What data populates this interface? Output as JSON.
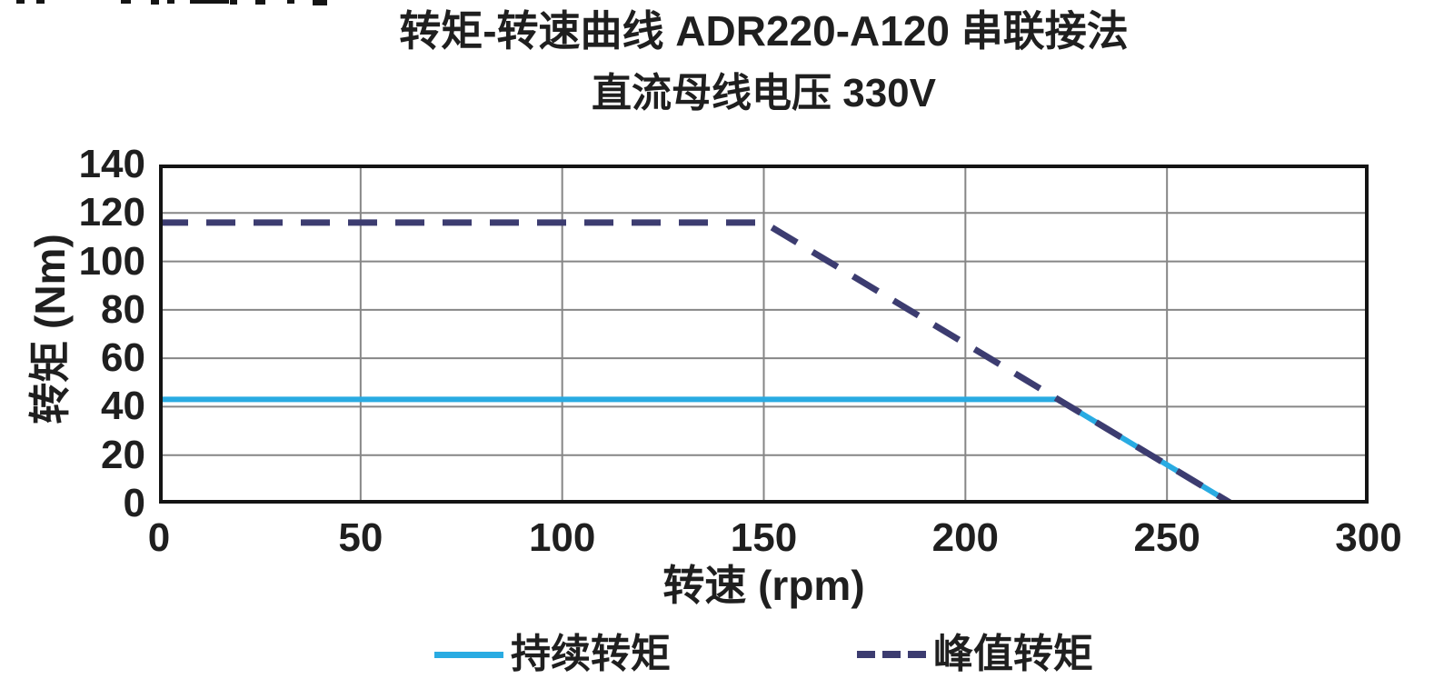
{
  "chart_data": {
    "type": "line",
    "title": "转矩-转速曲线 ADR220-A120 串联接法",
    "subtitle": "直流母线电压 330V",
    "xlabel": "转速 (rpm)",
    "ylabel": "转矩 (Nm)",
    "xlim": [
      0,
      300
    ],
    "ylim": [
      0,
      140
    ],
    "x_ticks": [
      0,
      50,
      100,
      150,
      200,
      250,
      300
    ],
    "y_ticks": [
      0,
      20,
      40,
      60,
      80,
      100,
      120,
      140
    ],
    "grid": true,
    "grid_color": "#868686",
    "axis_border_color": "#141414",
    "legend_position": "bottom",
    "series": [
      {
        "name": "持续转矩",
        "style": "solid",
        "color": "#29ABE2",
        "stroke_width": 6,
        "points": [
          [
            0,
            43
          ],
          [
            223,
            43
          ],
          [
            266,
            0
          ]
        ]
      },
      {
        "name": "峰值转矩",
        "style": "dashed",
        "color": "#3C3C70",
        "stroke_width": 7,
        "points": [
          [
            0,
            116
          ],
          [
            150,
            116
          ],
          [
            266,
            0
          ]
        ]
      }
    ]
  }
}
